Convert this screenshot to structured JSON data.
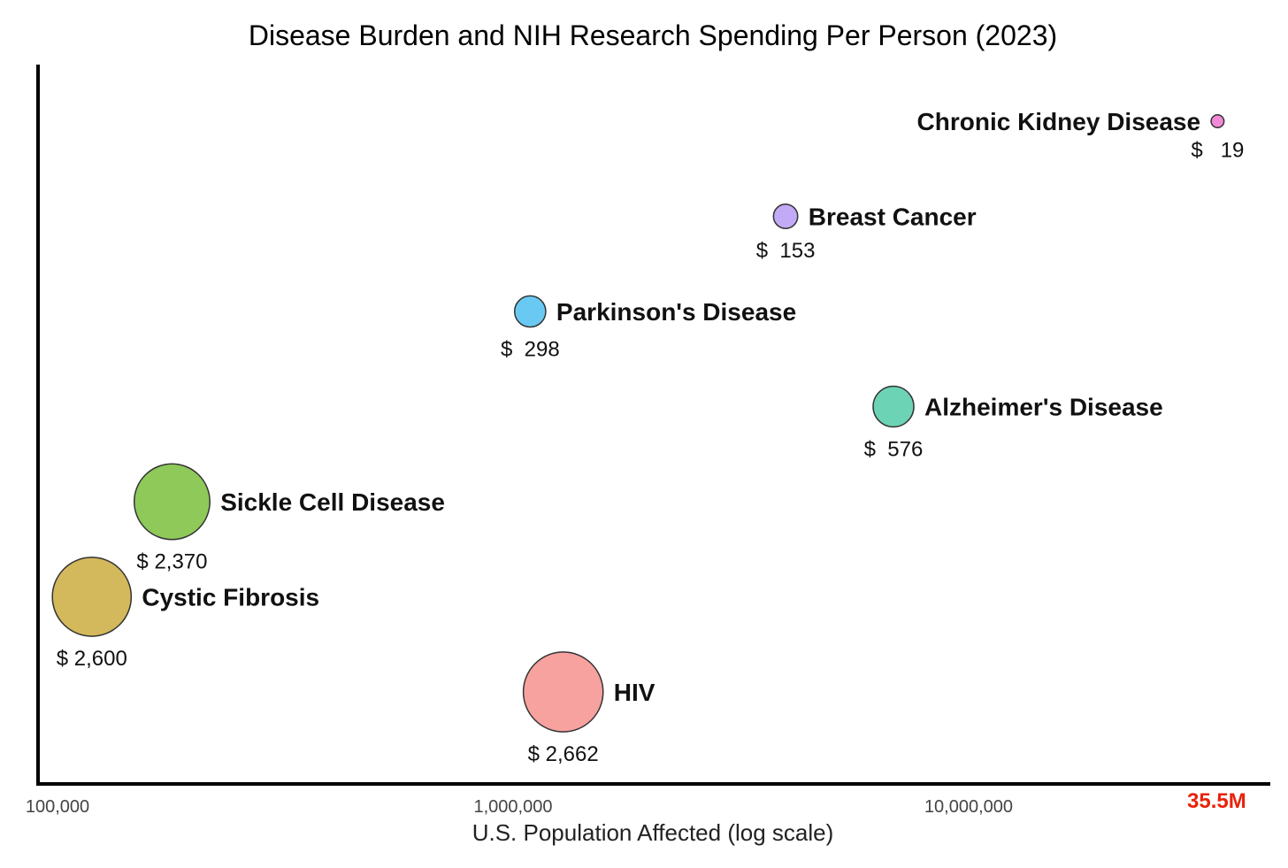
{
  "chart_data": {
    "type": "scatter",
    "title": "Disease Burden and NIH Research Spending Per Person (2023)",
    "xlabel": "U.S. Population Affected (log scale)",
    "ylabel": "",
    "x_scale": "log",
    "xlim": [
      90000,
      45000000
    ],
    "grid": false,
    "x_ticks": [
      {
        "value": 100000,
        "label": "100,000"
      },
      {
        "value": 1000000,
        "label": "1,000,000"
      },
      {
        "value": 10000000,
        "label": "10,000,000"
      }
    ],
    "x_highlight": {
      "value": 35500000,
      "label": "35.5M",
      "color": "#e8220a"
    },
    "points": [
      {
        "name": "Chronic Kidney Disease",
        "x": 35500000,
        "spending": 19,
        "value_label": "$   19",
        "color": "#f28ad9",
        "rank": 7
      },
      {
        "name": "Breast Cancer",
        "x": 4000000,
        "spending": 153,
        "value_label": "$  153",
        "color": "#c2aaf6",
        "rank": 6
      },
      {
        "name": "Parkinson's Disease",
        "x": 1100000,
        "spending": 298,
        "value_label": "$  298",
        "color": "#6ac9f2",
        "rank": 5
      },
      {
        "name": "Alzheimer's Disease",
        "x": 6900000,
        "spending": 576,
        "value_label": "$  576",
        "color": "#6dd3b5",
        "rank": 4
      },
      {
        "name": "Sickle Cell Disease",
        "x": 180000,
        "spending": 2370,
        "value_label": "$ 2,370",
        "color": "#8ec95a",
        "rank": 3
      },
      {
        "name": "Cystic Fibrosis",
        "x": 120000,
        "spending": 2600,
        "value_label": "$ 2,600",
        "color": "#d4b85c",
        "rank": 2
      },
      {
        "name": "HIV",
        "x": 1300000,
        "spending": 2662,
        "value_label": "$ 2,662",
        "color": "#f7a29f",
        "rank": 1
      }
    ]
  }
}
